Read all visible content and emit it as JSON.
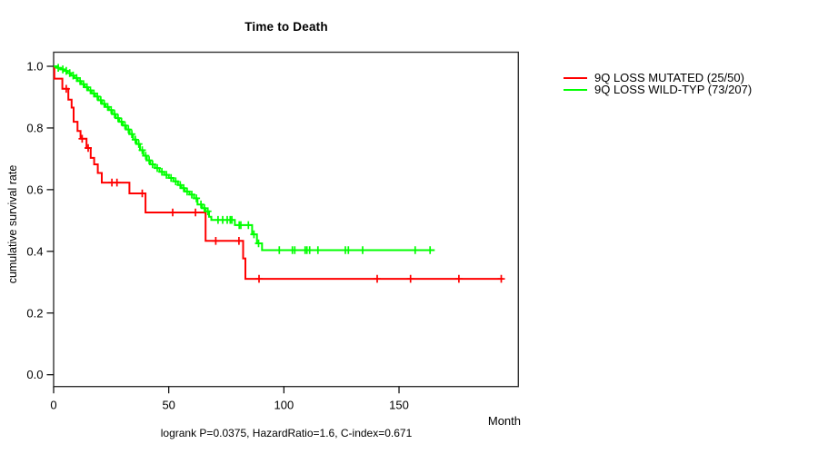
{
  "chart_data": {
    "type": "line",
    "subtype": "kaplan-meier-step",
    "title": "Time to Death",
    "xlabel": "Month",
    "ylabel": "cumulative survival rate",
    "footer": "logrank P=0.0375, HazardRatio=1.6, C-index=0.671",
    "xlim": [
      0,
      201
    ],
    "ylim": [
      0,
      1
    ],
    "grid": false,
    "legend_position": "top-right-outside",
    "frame_color": "#333333",
    "xticks": [
      {
        "v": 0,
        "label": "0"
      },
      {
        "v": 50,
        "label": "50"
      },
      {
        "v": 100,
        "label": "100"
      },
      {
        "v": 150,
        "label": "150"
      }
    ],
    "yticks": [
      {
        "v": 0.0,
        "label": "0.0"
      },
      {
        "v": 0.2,
        "label": "0.2"
      },
      {
        "v": 0.4,
        "label": "0.4"
      },
      {
        "v": 0.6,
        "label": "0.6"
      },
      {
        "v": 0.8,
        "label": "0.8"
      },
      {
        "v": 1.0,
        "label": "1.0"
      }
    ],
    "series": [
      {
        "key": "mutated",
        "name": "9Q LOSS MUTATED (25/50)",
        "color": "#ff0000",
        "end_time": 195,
        "steps": [
          [
            0,
            1.0
          ],
          [
            0.3,
            0.96
          ],
          [
            3.8,
            0.927
          ],
          [
            6.4,
            0.892
          ],
          [
            7.8,
            0.866
          ],
          [
            8.7,
            0.82
          ],
          [
            10.4,
            0.79
          ],
          [
            11.7,
            0.765
          ],
          [
            14.3,
            0.735
          ],
          [
            16.1,
            0.703
          ],
          [
            17.6,
            0.682
          ],
          [
            19.2,
            0.654
          ],
          [
            20.9,
            0.623
          ],
          [
            32.9,
            0.588
          ],
          [
            39.9,
            0.526
          ],
          [
            66,
            0.434
          ],
          [
            82.3,
            0.377
          ],
          [
            83.3,
            0.311
          ]
        ],
        "censor_times": [
          5.5,
          12.4,
          15.0,
          25.3,
          27.5,
          38.5,
          51.7,
          61.6,
          70.4,
          80.5,
          89.2,
          140.5,
          155,
          176,
          194.4
        ]
      },
      {
        "key": "wildtype",
        "name": "9Q LOSS WILD-TYP (73/207)",
        "color": "#00ff00",
        "end_time": 165.5,
        "steps": [
          [
            0,
            1.0
          ],
          [
            1.5,
            0.995
          ],
          [
            3,
            0.99
          ],
          [
            4.5,
            0.985
          ],
          [
            6,
            0.978
          ],
          [
            7.5,
            0.97
          ],
          [
            9,
            0.962
          ],
          [
            10.5,
            0.952
          ],
          [
            12,
            0.942
          ],
          [
            13.5,
            0.932
          ],
          [
            15,
            0.922
          ],
          [
            16.5,
            0.912
          ],
          [
            18,
            0.902
          ],
          [
            19.5,
            0.89
          ],
          [
            21,
            0.878
          ],
          [
            22.5,
            0.868
          ],
          [
            24,
            0.858
          ],
          [
            25.5,
            0.845
          ],
          [
            27,
            0.832
          ],
          [
            28.5,
            0.82
          ],
          [
            30,
            0.808
          ],
          [
            31.5,
            0.795
          ],
          [
            33,
            0.78
          ],
          [
            34.5,
            0.762
          ],
          [
            36,
            0.748
          ],
          [
            37.5,
            0.728
          ],
          [
            39,
            0.71
          ],
          [
            40.5,
            0.695
          ],
          [
            42,
            0.682
          ],
          [
            44,
            0.67
          ],
          [
            46,
            0.658
          ],
          [
            48,
            0.648
          ],
          [
            50,
            0.638
          ],
          [
            52,
            0.627
          ],
          [
            54,
            0.615
          ],
          [
            55.5,
            0.605
          ],
          [
            57,
            0.594
          ],
          [
            59,
            0.584
          ],
          [
            61,
            0.572
          ],
          [
            62.5,
            0.552
          ],
          [
            64.5,
            0.54
          ],
          [
            66,
            0.53
          ],
          [
            67.5,
            0.512
          ],
          [
            68.5,
            0.502
          ],
          [
            78.7,
            0.485
          ],
          [
            86.2,
            0.455
          ],
          [
            88.3,
            0.426
          ],
          [
            90.5,
            0.404
          ]
        ],
        "censor_times": [
          2,
          4,
          5.5,
          7,
          8.5,
          10,
          11.5,
          13,
          14.5,
          16,
          17.5,
          19,
          20.5,
          22,
          23.5,
          25,
          26.5,
          28,
          29.5,
          31,
          32.5,
          34,
          35.5,
          37,
          38.5,
          40,
          41.5,
          43,
          45,
          47,
          49,
          51,
          53,
          55,
          56.5,
          58,
          60,
          62,
          64,
          65.5,
          67,
          71.4,
          73.4,
          75.4,
          76.7,
          77.4,
          80.6,
          81.3,
          84.6,
          87,
          89,
          98,
          103.7,
          104.7,
          109.2,
          110,
          111.2,
          114.8,
          126.7,
          128,
          134.2,
          157,
          163.5
        ]
      }
    ]
  }
}
